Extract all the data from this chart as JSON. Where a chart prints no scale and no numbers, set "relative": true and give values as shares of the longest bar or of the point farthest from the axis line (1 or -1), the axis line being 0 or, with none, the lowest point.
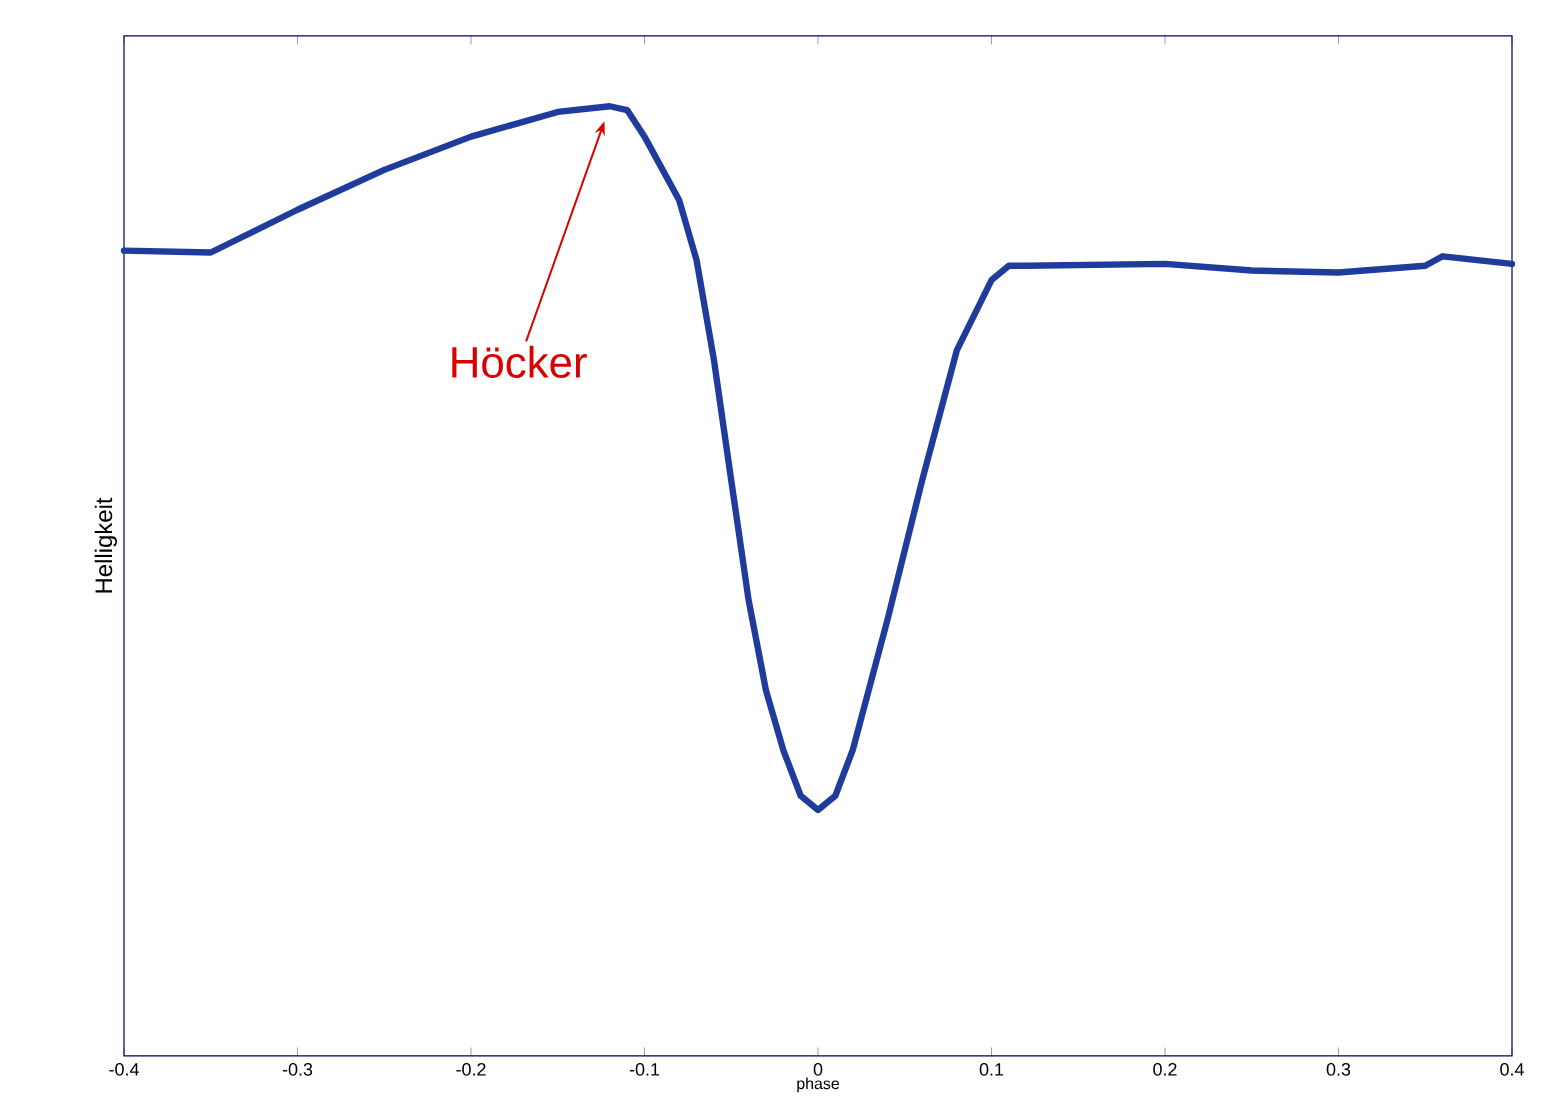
{
  "chart_data": {
    "type": "line",
    "relative": true,
    "xlabel": "phase",
    "ylabel": "Helligkeit",
    "xlim": [
      -0.4,
      0.4
    ],
    "xticks": [
      -0.4,
      -0.3,
      -0.2,
      -0.1,
      0,
      0.1,
      0.2,
      0.3,
      0.4
    ],
    "series": [
      {
        "color": "#1f3c9c",
        "x": [
          -0.4,
          -0.35,
          -0.3,
          -0.25,
          -0.2,
          -0.15,
          -0.12,
          -0.11,
          -0.1,
          -0.08,
          -0.07,
          -0.06,
          -0.05,
          -0.04,
          -0.03,
          -0.02,
          -0.01,
          0,
          0.01,
          0.02,
          0.04,
          0.06,
          0.08,
          0.1,
          0.11,
          0.12,
          0.2,
          0.25,
          0.3,
          0.35,
          0.36,
          0.38,
          0.4
        ],
        "values": [
          0.848,
          0.846,
          0.891,
          0.933,
          0.968,
          0.994,
          1.0,
          0.996,
          0.968,
          0.901,
          0.838,
          0.733,
          0.606,
          0.48,
          0.385,
          0.322,
          0.274,
          0.259,
          0.274,
          0.322,
          0.459,
          0.606,
          0.743,
          0.817,
          0.832,
          0.832,
          0.834,
          0.827,
          0.825,
          0.832,
          0.842,
          0.838,
          0.834
        ]
      }
    ],
    "annotations": [
      "Höcker"
    ],
    "marker": "none",
    "line_style": "solid",
    "grid": false
  }
}
